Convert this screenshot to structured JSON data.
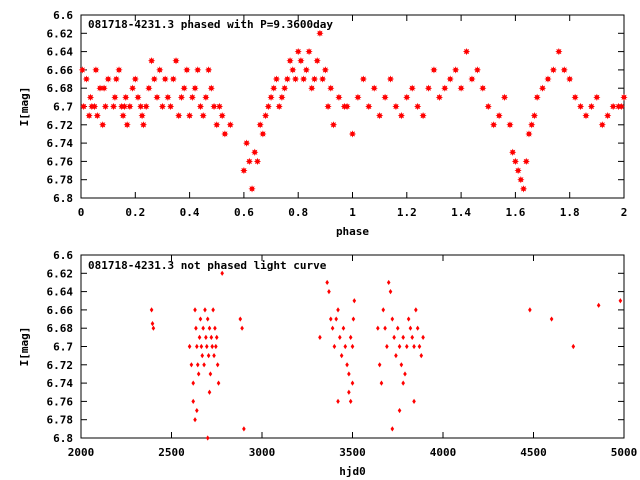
{
  "chart_data": [
    {
      "type": "scatter",
      "title": "081718-4231.3 phased with P=9.3600day",
      "xlabel": "phase",
      "ylabel": "I[mag]",
      "xlim": [
        0,
        2
      ],
      "ylim": [
        6.6,
        6.8
      ],
      "y_inverted": true,
      "grid": false,
      "point_color": "#ff0000",
      "marker": "filled-star",
      "xticks": [
        "0",
        "0.2",
        "0.4",
        "0.6",
        "0.8",
        "1",
        "1.2",
        "1.4",
        "1.6",
        "1.8",
        "2"
      ],
      "yticks": [
        "6.6",
        "6.62",
        "6.64",
        "6.66",
        "6.68",
        "6.7",
        "6.72",
        "6.74",
        "6.76",
        "6.78",
        "6.8"
      ],
      "points": [
        [
          0.005,
          6.66
        ],
        [
          0.01,
          6.7
        ],
        [
          0.02,
          6.67
        ],
        [
          0.03,
          6.71
        ],
        [
          0.035,
          6.69
        ],
        [
          0.04,
          6.7
        ],
        [
          0.05,
          6.7
        ],
        [
          0.055,
          6.66
        ],
        [
          0.06,
          6.71
        ],
        [
          0.07,
          6.68
        ],
        [
          0.08,
          6.72
        ],
        [
          0.085,
          6.68
        ],
        [
          0.09,
          6.7
        ],
        [
          0.1,
          6.67
        ],
        [
          0.12,
          6.7
        ],
        [
          0.125,
          6.69
        ],
        [
          0.13,
          6.67
        ],
        [
          0.14,
          6.66
        ],
        [
          0.15,
          6.7
        ],
        [
          0.155,
          6.71
        ],
        [
          0.16,
          6.7
        ],
        [
          0.165,
          6.69
        ],
        [
          0.17,
          6.72
        ],
        [
          0.18,
          6.7
        ],
        [
          0.19,
          6.68
        ],
        [
          0.2,
          6.67
        ],
        [
          0.21,
          6.69
        ],
        [
          0.22,
          6.7
        ],
        [
          0.225,
          6.71
        ],
        [
          0.23,
          6.72
        ],
        [
          0.24,
          6.7
        ],
        [
          0.25,
          6.68
        ],
        [
          0.26,
          6.65
        ],
        [
          0.27,
          6.67
        ],
        [
          0.28,
          6.69
        ],
        [
          0.29,
          6.66
        ],
        [
          0.3,
          6.7
        ],
        [
          0.31,
          6.67
        ],
        [
          0.32,
          6.69
        ],
        [
          0.33,
          6.7
        ],
        [
          0.34,
          6.67
        ],
        [
          0.35,
          6.65
        ],
        [
          0.36,
          6.71
        ],
        [
          0.37,
          6.69
        ],
        [
          0.38,
          6.68
        ],
        [
          0.39,
          6.66
        ],
        [
          0.4,
          6.71
        ],
        [
          0.41,
          6.69
        ],
        [
          0.42,
          6.68
        ],
        [
          0.43,
          6.66
        ],
        [
          0.44,
          6.7
        ],
        [
          0.45,
          6.71
        ],
        [
          0.46,
          6.69
        ],
        [
          0.47,
          6.66
        ],
        [
          0.48,
          6.68
        ],
        [
          0.49,
          6.7
        ],
        [
          0.5,
          6.72
        ],
        [
          0.51,
          6.7
        ],
        [
          0.52,
          6.71
        ],
        [
          0.53,
          6.73
        ],
        [
          0.55,
          6.72
        ],
        [
          0.6,
          6.77
        ],
        [
          0.61,
          6.74
        ],
        [
          0.62,
          6.76
        ],
        [
          0.63,
          6.79
        ],
        [
          0.64,
          6.75
        ],
        [
          0.65,
          6.76
        ],
        [
          0.66,
          6.72
        ],
        [
          0.67,
          6.73
        ],
        [
          0.68,
          6.71
        ],
        [
          0.69,
          6.7
        ],
        [
          0.7,
          6.69
        ],
        [
          0.71,
          6.68
        ],
        [
          0.72,
          6.67
        ],
        [
          0.73,
          6.7
        ],
        [
          0.74,
          6.69
        ],
        [
          0.75,
          6.68
        ],
        [
          0.76,
          6.67
        ],
        [
          0.77,
          6.65
        ],
        [
          0.78,
          6.66
        ],
        [
          0.79,
          6.67
        ],
        [
          0.8,
          6.64
        ],
        [
          0.81,
          6.65
        ],
        [
          0.82,
          6.67
        ],
        [
          0.83,
          6.66
        ],
        [
          0.84,
          6.64
        ],
        [
          0.85,
          6.68
        ],
        [
          0.86,
          6.67
        ],
        [
          0.87,
          6.65
        ],
        [
          0.88,
          6.62
        ],
        [
          0.89,
          6.67
        ],
        [
          0.9,
          6.66
        ],
        [
          0.91,
          6.7
        ],
        [
          0.92,
          6.68
        ],
        [
          0.93,
          6.72
        ],
        [
          0.95,
          6.69
        ],
        [
          0.97,
          6.7
        ],
        [
          0.98,
          6.7
        ],
        [
          1.0,
          6.73
        ],
        [
          1.02,
          6.69
        ],
        [
          1.04,
          6.67
        ],
        [
          1.06,
          6.7
        ],
        [
          1.08,
          6.68
        ],
        [
          1.1,
          6.71
        ],
        [
          1.12,
          6.69
        ],
        [
          1.14,
          6.67
        ],
        [
          1.16,
          6.7
        ],
        [
          1.18,
          6.71
        ],
        [
          1.2,
          6.69
        ],
        [
          1.22,
          6.68
        ],
        [
          1.24,
          6.7
        ],
        [
          1.26,
          6.71
        ],
        [
          1.28,
          6.68
        ],
        [
          1.3,
          6.66
        ],
        [
          1.32,
          6.69
        ],
        [
          1.34,
          6.68
        ],
        [
          1.36,
          6.67
        ],
        [
          1.38,
          6.66
        ],
        [
          1.4,
          6.68
        ],
        [
          1.42,
          6.64
        ],
        [
          1.44,
          6.67
        ],
        [
          1.46,
          6.66
        ],
        [
          1.48,
          6.68
        ],
        [
          1.5,
          6.7
        ],
        [
          1.52,
          6.72
        ],
        [
          1.54,
          6.71
        ],
        [
          1.56,
          6.69
        ],
        [
          1.58,
          6.72
        ],
        [
          1.59,
          6.75
        ],
        [
          1.6,
          6.76
        ],
        [
          1.61,
          6.77
        ],
        [
          1.62,
          6.78
        ],
        [
          1.63,
          6.79
        ],
        [
          1.64,
          6.76
        ],
        [
          1.65,
          6.73
        ],
        [
          1.66,
          6.72
        ],
        [
          1.67,
          6.71
        ],
        [
          1.68,
          6.69
        ],
        [
          1.7,
          6.68
        ],
        [
          1.72,
          6.67
        ],
        [
          1.74,
          6.66
        ],
        [
          1.76,
          6.64
        ],
        [
          1.78,
          6.66
        ],
        [
          1.8,
          6.67
        ],
        [
          1.82,
          6.69
        ],
        [
          1.84,
          6.7
        ],
        [
          1.86,
          6.71
        ],
        [
          1.88,
          6.7
        ],
        [
          1.9,
          6.69
        ],
        [
          1.92,
          6.72
        ],
        [
          1.94,
          6.71
        ],
        [
          1.96,
          6.7
        ],
        [
          1.98,
          6.7
        ],
        [
          1.99,
          6.7
        ],
        [
          2.0,
          6.69
        ]
      ]
    },
    {
      "type": "scatter",
      "title": "081718-4231.3 not phased light curve",
      "xlabel": "hjd0",
      "ylabel": "I[mag]",
      "xlim": [
        2000,
        5000
      ],
      "ylim": [
        6.6,
        6.8
      ],
      "y_inverted": true,
      "grid": false,
      "point_color": "#ff0000",
      "marker": "small-diamond",
      "xticks": [
        "2000",
        "2500",
        "3000",
        "3500",
        "4000",
        "4500",
        "5000"
      ],
      "yticks": [
        "6.6",
        "6.62",
        "6.64",
        "6.66",
        "6.68",
        "6.7",
        "6.72",
        "6.74",
        "6.76",
        "6.78",
        "6.8"
      ],
      "points": [
        [
          2390,
          6.66
        ],
        [
          2395,
          6.675
        ],
        [
          2400,
          6.68
        ],
        [
          2600,
          6.7
        ],
        [
          2610,
          6.72
        ],
        [
          2620,
          6.74
        ],
        [
          2630,
          6.66
        ],
        [
          2635,
          6.68
        ],
        [
          2640,
          6.7
        ],
        [
          2645,
          6.72
        ],
        [
          2650,
          6.73
        ],
        [
          2655,
          6.69
        ],
        [
          2660,
          6.67
        ],
        [
          2665,
          6.7
        ],
        [
          2670,
          6.71
        ],
        [
          2675,
          6.68
        ],
        [
          2680,
          6.72
        ],
        [
          2685,
          6.66
        ],
        [
          2690,
          6.69
        ],
        [
          2695,
          6.7
        ],
        [
          2700,
          6.67
        ],
        [
          2705,
          6.71
        ],
        [
          2710,
          6.68
        ],
        [
          2715,
          6.73
        ],
        [
          2720,
          6.69
        ],
        [
          2725,
          6.7
        ],
        [
          2730,
          6.66
        ],
        [
          2735,
          6.71
        ],
        [
          2740,
          6.68
        ],
        [
          2745,
          6.7
        ],
        [
          2750,
          6.69
        ],
        [
          2755,
          6.72
        ],
        [
          2620,
          6.76
        ],
        [
          2630,
          6.78
        ],
        [
          2640,
          6.77
        ],
        [
          2700,
          6.8
        ],
        [
          2710,
          6.75
        ],
        [
          2760,
          6.74
        ],
        [
          2780,
          6.62
        ],
        [
          2880,
          6.67
        ],
        [
          2890,
          6.68
        ],
        [
          2900,
          6.79
        ],
        [
          3320,
          6.69
        ],
        [
          3360,
          6.63
        ],
        [
          3370,
          6.64
        ],
        [
          3380,
          6.67
        ],
        [
          3390,
          6.68
        ],
        [
          3400,
          6.7
        ],
        [
          3410,
          6.67
        ],
        [
          3420,
          6.66
        ],
        [
          3430,
          6.69
        ],
        [
          3440,
          6.71
        ],
        [
          3450,
          6.68
        ],
        [
          3460,
          6.7
        ],
        [
          3470,
          6.72
        ],
        [
          3480,
          6.73
        ],
        [
          3490,
          6.69
        ],
        [
          3500,
          6.7
        ],
        [
          3505,
          6.67
        ],
        [
          3510,
          6.65
        ],
        [
          3480,
          6.75
        ],
        [
          3490,
          6.76
        ],
        [
          3500,
          6.74
        ],
        [
          3420,
          6.76
        ],
        [
          3640,
          6.68
        ],
        [
          3650,
          6.72
        ],
        [
          3660,
          6.74
        ],
        [
          3670,
          6.66
        ],
        [
          3680,
          6.68
        ],
        [
          3690,
          6.7
        ],
        [
          3700,
          6.63
        ],
        [
          3710,
          6.64
        ],
        [
          3720,
          6.67
        ],
        [
          3730,
          6.69
        ],
        [
          3740,
          6.71
        ],
        [
          3750,
          6.68
        ],
        [
          3760,
          6.7
        ],
        [
          3770,
          6.72
        ],
        [
          3780,
          6.69
        ],
        [
          3790,
          6.73
        ],
        [
          3800,
          6.7
        ],
        [
          3810,
          6.67
        ],
        [
          3820,
          6.68
        ],
        [
          3830,
          6.69
        ],
        [
          3840,
          6.7
        ],
        [
          3850,
          6.66
        ],
        [
          3860,
          6.68
        ],
        [
          3870,
          6.7
        ],
        [
          3880,
          6.71
        ],
        [
          3890,
          6.69
        ],
        [
          3760,
          6.77
        ],
        [
          3780,
          6.74
        ],
        [
          3720,
          6.79
        ],
        [
          3840,
          6.76
        ],
        [
          4480,
          6.66
        ],
        [
          4600,
          6.67
        ],
        [
          4720,
          6.7
        ],
        [
          4860,
          6.655
        ],
        [
          4980,
          6.65
        ]
      ]
    }
  ]
}
